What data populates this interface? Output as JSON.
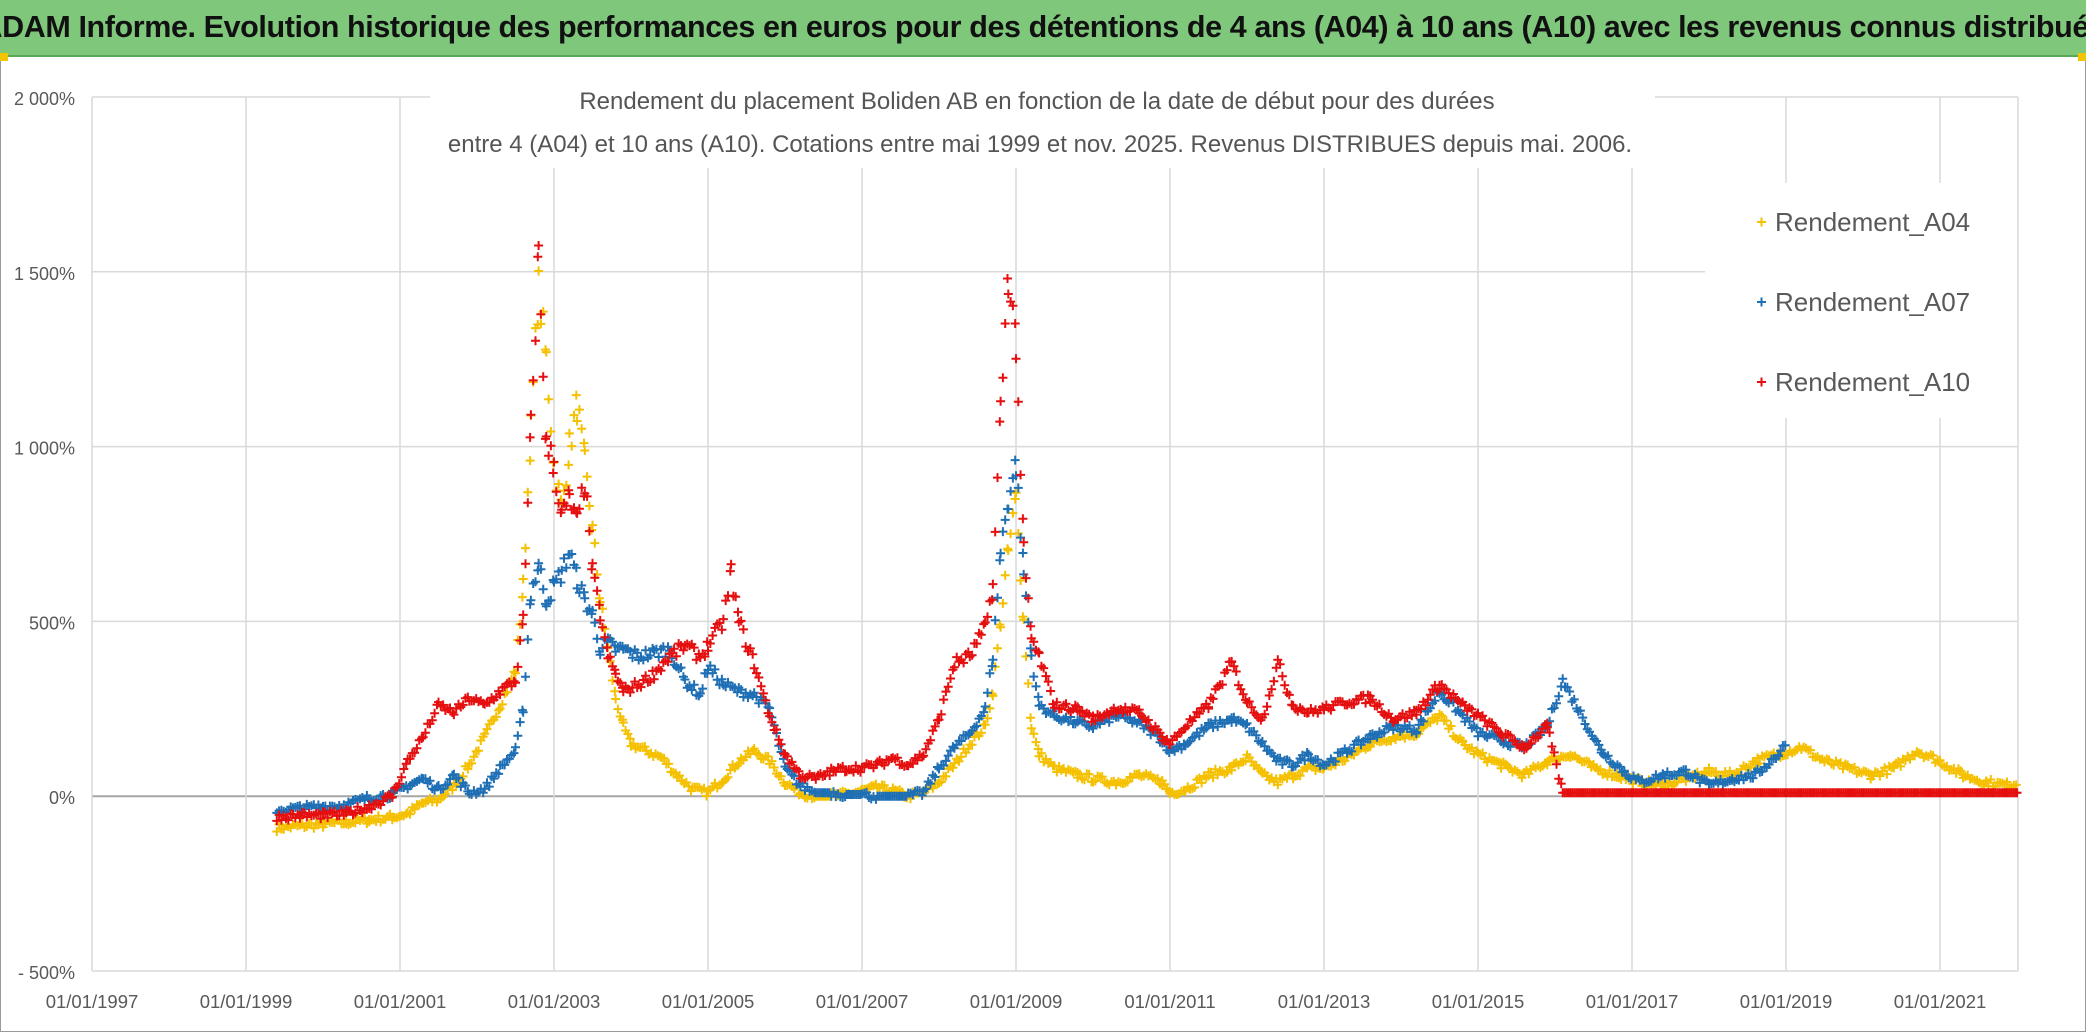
{
  "header": {
    "banner_title": "ADAM Informe. Evolution historique des performances en euros pour des détentions de 4 ans (A04) à 10 ans (A10) avec les revenus connus distribués"
  },
  "chart_data": {
    "type": "scatter",
    "title_line1": "Rendement du placement Boliden AB en fonction de la date de début pour des durées",
    "title_line2": "entre 4 (A04) et 10 ans (A10). Cotations entre mai 1999 et nov. 2025. Revenus DISTRIBUES depuis mai. 2006.",
    "xlabel": "",
    "ylabel": "",
    "x_range": [
      "1997-01-01",
      "2021-12-31"
    ],
    "ylim": [
      -500,
      2000
    ],
    "y_ticks": [
      {
        "value": 2000,
        "label": "2 000%"
      },
      {
        "value": 1500,
        "label": "1 500%"
      },
      {
        "value": 1000,
        "label": "1 000%"
      },
      {
        "value": 500,
        "label": "500%"
      },
      {
        "value": 0,
        "label": "0%"
      },
      {
        "value": -500,
        "label": "- 500%"
      }
    ],
    "x_ticks": [
      "01/01/1997",
      "01/01/1999",
      "01/01/2001",
      "01/01/2003",
      "01/01/2005",
      "01/01/2007",
      "01/01/2009",
      "01/01/2011",
      "01/01/2013",
      "01/01/2015",
      "01/01/2017",
      "01/01/2019",
      "01/01/2021"
    ],
    "grid": true,
    "legend_position": "top-right",
    "series": [
      {
        "name": "Rendement_A04",
        "color": "#f5c000",
        "points": [
          [
            1999.4,
            -90
          ],
          [
            1999.7,
            -85
          ],
          [
            2000.0,
            -80
          ],
          [
            2000.3,
            -75
          ],
          [
            2000.6,
            -68
          ],
          [
            2000.9,
            -60
          ],
          [
            2001.1,
            -50
          ],
          [
            2001.3,
            -20
          ],
          [
            2001.5,
            -10
          ],
          [
            2001.7,
            30
          ],
          [
            2001.9,
            90
          ],
          [
            2002.1,
            170
          ],
          [
            2002.3,
            260
          ],
          [
            2002.5,
            360
          ],
          [
            2002.6,
            600
          ],
          [
            2002.7,
            1050
          ],
          [
            2002.8,
            1450
          ],
          [
            2002.9,
            1250
          ],
          [
            2003.0,
            950
          ],
          [
            2003.1,
            820
          ],
          [
            2003.2,
            1000
          ],
          [
            2003.3,
            1120
          ],
          [
            2003.4,
            950
          ],
          [
            2003.5,
            760
          ],
          [
            2003.6,
            560
          ],
          [
            2003.7,
            420
          ],
          [
            2003.8,
            280
          ],
          [
            2003.9,
            200
          ],
          [
            2004.0,
            150
          ],
          [
            2004.2,
            130
          ],
          [
            2004.4,
            110
          ],
          [
            2004.6,
            60
          ],
          [
            2004.8,
            20
          ],
          [
            2005.0,
            10
          ],
          [
            2005.2,
            50
          ],
          [
            2005.4,
            100
          ],
          [
            2005.6,
            130
          ],
          [
            2005.8,
            100
          ],
          [
            2006.0,
            40
          ],
          [
            2006.2,
            10
          ],
          [
            2006.4,
            0
          ],
          [
            2006.6,
            0
          ],
          [
            2006.8,
            5
          ],
          [
            2007.0,
            15
          ],
          [
            2007.2,
            25
          ],
          [
            2007.4,
            15
          ],
          [
            2007.6,
            0
          ],
          [
            2007.8,
            10
          ],
          [
            2008.0,
            40
          ],
          [
            2008.2,
            90
          ],
          [
            2008.4,
            150
          ],
          [
            2008.6,
            200
          ],
          [
            2008.7,
            300
          ],
          [
            2008.8,
            500
          ],
          [
            2008.9,
            700
          ],
          [
            2009.0,
            850
          ],
          [
            2009.1,
            500
          ],
          [
            2009.2,
            200
          ],
          [
            2009.3,
            120
          ],
          [
            2009.5,
            80
          ],
          [
            2009.8,
            60
          ],
          [
            2010.0,
            50
          ],
          [
            2010.3,
            40
          ],
          [
            2010.6,
            60
          ],
          [
            2010.9,
            40
          ],
          [
            2011.0,
            10
          ],
          [
            2011.2,
            20
          ],
          [
            2011.5,
            60
          ],
          [
            2011.8,
            80
          ],
          [
            2012.0,
            110
          ],
          [
            2012.2,
            60
          ],
          [
            2012.4,
            40
          ],
          [
            2012.6,
            60
          ],
          [
            2012.8,
            80
          ],
          [
            2013.0,
            80
          ],
          [
            2013.3,
            110
          ],
          [
            2013.6,
            150
          ],
          [
            2013.9,
            170
          ],
          [
            2014.2,
            180
          ],
          [
            2014.5,
            230
          ],
          [
            2014.8,
            150
          ],
          [
            2015.0,
            120
          ],
          [
            2015.3,
            90
          ],
          [
            2015.6,
            60
          ],
          [
            2015.9,
            100
          ],
          [
            2016.2,
            120
          ],
          [
            2016.5,
            80
          ],
          [
            2016.8,
            60
          ],
          [
            2017.1,
            40
          ],
          [
            2017.4,
            30
          ],
          [
            2017.7,
            50
          ],
          [
            2018.0,
            70
          ],
          [
            2018.3,
            60
          ],
          [
            2018.6,
            100
          ],
          [
            2018.9,
            120
          ],
          [
            2019.2,
            140
          ],
          [
            2019.5,
            100
          ],
          [
            2019.8,
            80
          ],
          [
            2020.1,
            60
          ],
          [
            2020.4,
            80
          ],
          [
            2020.7,
            130
          ],
          [
            2021.0,
            100
          ],
          [
            2021.3,
            60
          ],
          [
            2021.6,
            40
          ],
          [
            2021.9,
            30
          ],
          [
            2022.2,
            50
          ],
          [
            2022.4,
            60
          ]
        ]
      },
      {
        "name": "Rendement_A07",
        "color": "#1f6fb5",
        "points": [
          [
            1999.4,
            -40
          ],
          [
            1999.7,
            -35
          ],
          [
            2000.0,
            -30
          ],
          [
            2000.3,
            -25
          ],
          [
            2000.6,
            -5
          ],
          [
            2000.9,
            5
          ],
          [
            2001.1,
            30
          ],
          [
            2001.3,
            50
          ],
          [
            2001.5,
            20
          ],
          [
            2001.7,
            60
          ],
          [
            2001.9,
            10
          ],
          [
            2002.1,
            20
          ],
          [
            2002.3,
            80
          ],
          [
            2002.5,
            130
          ],
          [
            2002.6,
            250
          ],
          [
            2002.7,
            580
          ],
          [
            2002.8,
            660
          ],
          [
            2002.9,
            560
          ],
          [
            2003.0,
            600
          ],
          [
            2003.1,
            640
          ],
          [
            2003.2,
            700
          ],
          [
            2003.3,
            620
          ],
          [
            2003.4,
            560
          ],
          [
            2003.5,
            520
          ],
          [
            2003.6,
            420
          ],
          [
            2003.7,
            440
          ],
          [
            2003.8,
            420
          ],
          [
            2003.9,
            420
          ],
          [
            2004.1,
            400
          ],
          [
            2004.3,
            410
          ],
          [
            2004.5,
            420
          ],
          [
            2004.7,
            330
          ],
          [
            2004.9,
            290
          ],
          [
            2005.0,
            370
          ],
          [
            2005.2,
            320
          ],
          [
            2005.4,
            300
          ],
          [
            2005.6,
            290
          ],
          [
            2005.8,
            250
          ],
          [
            2006.0,
            80
          ],
          [
            2006.2,
            30
          ],
          [
            2006.4,
            10
          ],
          [
            2006.6,
            10
          ],
          [
            2006.8,
            5
          ],
          [
            2007.0,
            5
          ],
          [
            2007.2,
            0
          ],
          [
            2007.4,
            0
          ],
          [
            2007.6,
            0
          ],
          [
            2007.8,
            10
          ],
          [
            2008.0,
            80
          ],
          [
            2008.2,
            140
          ],
          [
            2008.4,
            180
          ],
          [
            2008.6,
            250
          ],
          [
            2008.7,
            400
          ],
          [
            2008.8,
            700
          ],
          [
            2008.9,
            850
          ],
          [
            2009.0,
            950
          ],
          [
            2009.1,
            640
          ],
          [
            2009.2,
            400
          ],
          [
            2009.3,
            260
          ],
          [
            2009.5,
            230
          ],
          [
            2009.8,
            210
          ],
          [
            2010.0,
            200
          ],
          [
            2010.3,
            230
          ],
          [
            2010.6,
            210
          ],
          [
            2010.9,
            160
          ],
          [
            2011.0,
            130
          ],
          [
            2011.2,
            150
          ],
          [
            2011.5,
            200
          ],
          [
            2011.8,
            220
          ],
          [
            2012.0,
            200
          ],
          [
            2012.2,
            150
          ],
          [
            2012.4,
            100
          ],
          [
            2012.6,
            90
          ],
          [
            2012.8,
            120
          ],
          [
            2013.0,
            90
          ],
          [
            2013.3,
            130
          ],
          [
            2013.6,
            170
          ],
          [
            2013.9,
            200
          ],
          [
            2014.2,
            190
          ],
          [
            2014.5,
            300
          ],
          [
            2014.8,
            230
          ],
          [
            2015.0,
            180
          ],
          [
            2015.3,
            160
          ],
          [
            2015.6,
            140
          ],
          [
            2015.9,
            200
          ],
          [
            2016.1,
            330
          ],
          [
            2016.3,
            250
          ],
          [
            2016.6,
            130
          ],
          [
            2016.9,
            70
          ],
          [
            2017.1,
            40
          ],
          [
            2017.4,
            60
          ],
          [
            2017.7,
            70
          ],
          [
            2018.0,
            30
          ],
          [
            2018.3,
            50
          ],
          [
            2018.6,
            60
          ],
          [
            2018.9,
            120
          ],
          [
            2019.0,
            150
          ]
        ]
      },
      {
        "name": "Rendement_A10",
        "color": "#e50f0f",
        "points": [
          [
            1999.4,
            -60
          ],
          [
            1999.7,
            -55
          ],
          [
            2000.0,
            -55
          ],
          [
            2000.3,
            -50
          ],
          [
            2000.6,
            -30
          ],
          [
            2000.9,
            0
          ],
          [
            2001.1,
            100
          ],
          [
            2001.3,
            170
          ],
          [
            2001.5,
            260
          ],
          [
            2001.7,
            240
          ],
          [
            2001.9,
            280
          ],
          [
            2002.1,
            260
          ],
          [
            2002.3,
            300
          ],
          [
            2002.5,
            330
          ],
          [
            2002.6,
            500
          ],
          [
            2002.7,
            1050
          ],
          [
            2002.8,
            1550
          ],
          [
            2002.9,
            1000
          ],
          [
            2003.0,
            950
          ],
          [
            2003.1,
            800
          ],
          [
            2003.2,
            850
          ],
          [
            2003.3,
            780
          ],
          [
            2003.4,
            900
          ],
          [
            2003.5,
            640
          ],
          [
            2003.6,
            520
          ],
          [
            2003.7,
            400
          ],
          [
            2003.8,
            350
          ],
          [
            2003.9,
            300
          ],
          [
            2004.1,
            320
          ],
          [
            2004.3,
            350
          ],
          [
            2004.5,
            400
          ],
          [
            2004.7,
            430
          ],
          [
            2004.9,
            400
          ],
          [
            2005.0,
            430
          ],
          [
            2005.2,
            500
          ],
          [
            2005.3,
            640
          ],
          [
            2005.4,
            500
          ],
          [
            2005.6,
            380
          ],
          [
            2005.8,
            230
          ],
          [
            2006.0,
            120
          ],
          [
            2006.2,
            60
          ],
          [
            2006.4,
            50
          ],
          [
            2006.6,
            70
          ],
          [
            2006.8,
            80
          ],
          [
            2007.0,
            80
          ],
          [
            2007.2,
            90
          ],
          [
            2007.4,
            110
          ],
          [
            2007.6,
            90
          ],
          [
            2007.8,
            120
          ],
          [
            2008.0,
            220
          ],
          [
            2008.2,
            380
          ],
          [
            2008.4,
            400
          ],
          [
            2008.6,
            480
          ],
          [
            2008.7,
            600
          ],
          [
            2008.8,
            1100
          ],
          [
            2008.9,
            1500
          ],
          [
            2009.0,
            1300
          ],
          [
            2009.1,
            700
          ],
          [
            2009.2,
            450
          ],
          [
            2009.3,
            400
          ],
          [
            2009.5,
            260
          ],
          [
            2009.8,
            250
          ],
          [
            2010.0,
            220
          ],
          [
            2010.3,
            250
          ],
          [
            2010.6,
            240
          ],
          [
            2010.9,
            170
          ],
          [
            2011.0,
            150
          ],
          [
            2011.2,
            200
          ],
          [
            2011.5,
            260
          ],
          [
            2011.8,
            380
          ],
          [
            2012.0,
            270
          ],
          [
            2012.2,
            220
          ],
          [
            2012.4,
            380
          ],
          [
            2012.6,
            260
          ],
          [
            2012.8,
            240
          ],
          [
            2013.0,
            250
          ],
          [
            2013.3,
            270
          ],
          [
            2013.6,
            280
          ],
          [
            2013.9,
            220
          ],
          [
            2014.2,
            240
          ],
          [
            2014.5,
            320
          ],
          [
            2014.8,
            260
          ],
          [
            2015.0,
            230
          ],
          [
            2015.3,
            180
          ],
          [
            2015.6,
            140
          ],
          [
            2015.9,
            200
          ],
          [
            2016.1,
            10
          ],
          [
            2018.0,
            10
          ],
          [
            2020.0,
            10
          ],
          [
            2022.4,
            10
          ]
        ]
      }
    ]
  }
}
